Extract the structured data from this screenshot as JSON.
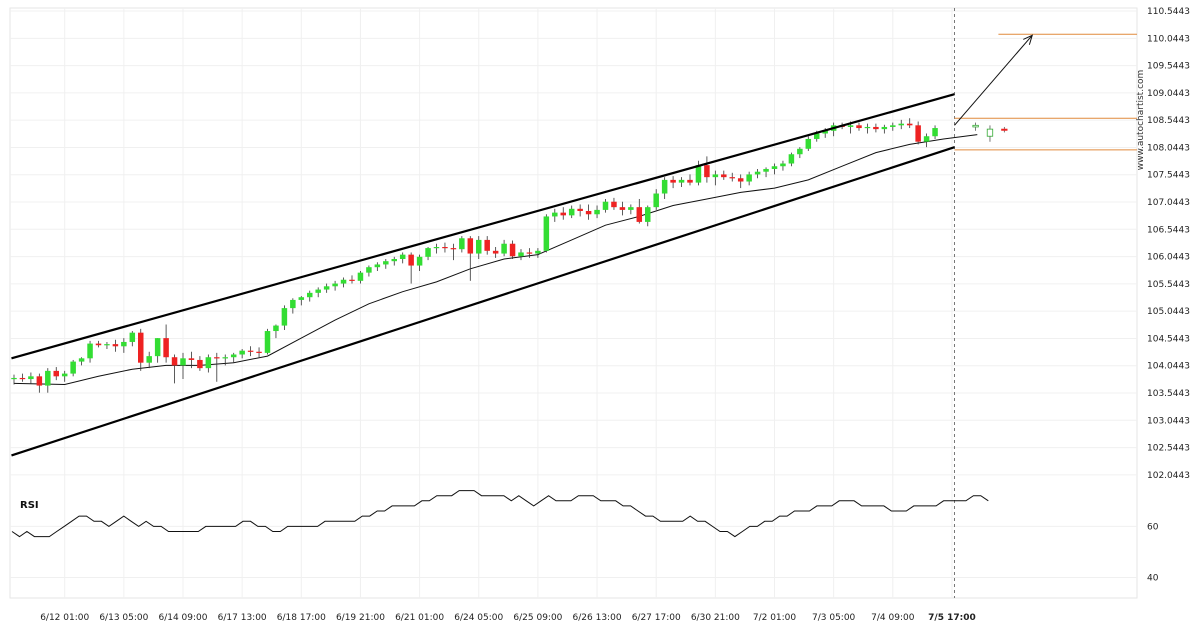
{
  "chart_data": [
    {
      "type": "candlestick",
      "title": "",
      "watermark": "www.autochartist.com",
      "y_ticks": [
        "110.5443",
        "110.0443",
        "109.5443",
        "109.0443",
        "108.5443",
        "108.0443",
        "107.5443",
        "107.0443",
        "106.5443",
        "106.0443",
        "105.5443",
        "105.0443",
        "104.5443",
        "104.0443",
        "103.5443",
        "103.0443",
        "102.5443",
        "102.0443"
      ],
      "ylim": [
        101.95,
        110.6
      ],
      "x_ticks": [
        {
          "label": "6/12 01:00",
          "index": 6
        },
        {
          "label": "6/13 05:00",
          "index": 13
        },
        {
          "label": "6/14 09:00",
          "index": 20
        },
        {
          "label": "6/17 13:00",
          "index": 27
        },
        {
          "label": "6/18 17:00",
          "index": 34
        },
        {
          "label": "6/19 21:00",
          "index": 41
        },
        {
          "label": "6/21 01:00",
          "index": 48
        },
        {
          "label": "6/24 05:00",
          "index": 55
        },
        {
          "label": "6/25 09:00",
          "index": 62
        },
        {
          "label": "6/26 13:00",
          "index": 69
        },
        {
          "label": "6/27 17:00",
          "index": 76
        },
        {
          "label": "6/30 21:00",
          "index": 83
        },
        {
          "label": "7/2 01:00",
          "index": 90
        },
        {
          "label": "7/3 05:00",
          "index": 97
        },
        {
          "label": "7/4 09:00",
          "index": 104
        },
        {
          "label": "7/5 17:00",
          "index": 111,
          "highlight": true
        }
      ],
      "candles": [
        {
          "o": 103.8,
          "h": 103.88,
          "l": 103.7,
          "c": 103.82
        },
        {
          "o": 103.82,
          "h": 103.9,
          "l": 103.75,
          "c": 103.8
        },
        {
          "o": 103.8,
          "h": 103.92,
          "l": 103.72,
          "c": 103.85
        },
        {
          "o": 103.85,
          "h": 103.9,
          "l": 103.55,
          "c": 103.68
        },
        {
          "o": 103.68,
          "h": 104.0,
          "l": 103.55,
          "c": 103.95
        },
        {
          "o": 103.95,
          "h": 104.02,
          "l": 103.78,
          "c": 103.85
        },
        {
          "o": 103.85,
          "h": 103.95,
          "l": 103.75,
          "c": 103.9
        },
        {
          "o": 103.9,
          "h": 104.15,
          "l": 103.85,
          "c": 104.12
        },
        {
          "o": 104.12,
          "h": 104.2,
          "l": 104.05,
          "c": 104.18
        },
        {
          "o": 104.18,
          "h": 104.5,
          "l": 104.1,
          "c": 104.45
        },
        {
          "o": 104.45,
          "h": 104.5,
          "l": 104.38,
          "c": 104.42
        },
        {
          "o": 104.42,
          "h": 104.48,
          "l": 104.35,
          "c": 104.44
        },
        {
          "o": 104.44,
          "h": 104.52,
          "l": 104.3,
          "c": 104.4
        },
        {
          "o": 104.4,
          "h": 104.55,
          "l": 104.28,
          "c": 104.48
        },
        {
          "o": 104.48,
          "h": 104.68,
          "l": 104.4,
          "c": 104.65
        },
        {
          "o": 104.65,
          "h": 104.72,
          "l": 103.95,
          "c": 104.1
        },
        {
          "o": 104.1,
          "h": 104.3,
          "l": 104.0,
          "c": 104.22
        },
        {
          "o": 104.22,
          "h": 104.55,
          "l": 104.1,
          "c": 104.55
        },
        {
          "o": 104.55,
          "h": 104.8,
          "l": 104.1,
          "c": 104.2
        },
        {
          "o": 104.2,
          "h": 104.25,
          "l": 103.72,
          "c": 104.05
        },
        {
          "o": 104.05,
          "h": 104.28,
          "l": 103.8,
          "c": 104.18
        },
        {
          "o": 104.18,
          "h": 104.3,
          "l": 104.0,
          "c": 104.15
        },
        {
          "o": 104.15,
          "h": 104.22,
          "l": 103.95,
          "c": 104.0
        },
        {
          "o": 104.0,
          "h": 104.25,
          "l": 103.92,
          "c": 104.2
        },
        {
          "o": 104.2,
          "h": 104.28,
          "l": 103.75,
          "c": 104.18
        },
        {
          "o": 104.18,
          "h": 104.25,
          "l": 104.05,
          "c": 104.2
        },
        {
          "o": 104.2,
          "h": 104.28,
          "l": 104.1,
          "c": 104.25
        },
        {
          "o": 104.25,
          "h": 104.35,
          "l": 104.18,
          "c": 104.32
        },
        {
          "o": 104.32,
          "h": 104.4,
          "l": 104.22,
          "c": 104.3
        },
        {
          "o": 104.3,
          "h": 104.38,
          "l": 104.2,
          "c": 104.28
        },
        {
          "o": 104.28,
          "h": 104.72,
          "l": 104.25,
          "c": 104.68
        },
        {
          "o": 104.68,
          "h": 104.8,
          "l": 104.55,
          "c": 104.78
        },
        {
          "o": 104.78,
          "h": 105.15,
          "l": 104.7,
          "c": 105.1
        },
        {
          "o": 105.1,
          "h": 105.28,
          "l": 105.0,
          "c": 105.25
        },
        {
          "o": 105.25,
          "h": 105.32,
          "l": 105.15,
          "c": 105.3
        },
        {
          "o": 105.3,
          "h": 105.42,
          "l": 105.22,
          "c": 105.38
        },
        {
          "o": 105.38,
          "h": 105.48,
          "l": 105.3,
          "c": 105.44
        },
        {
          "o": 105.44,
          "h": 105.55,
          "l": 105.38,
          "c": 105.5
        },
        {
          "o": 105.5,
          "h": 105.6,
          "l": 105.42,
          "c": 105.55
        },
        {
          "o": 105.55,
          "h": 105.66,
          "l": 105.48,
          "c": 105.62
        },
        {
          "o": 105.62,
          "h": 105.7,
          "l": 105.55,
          "c": 105.6
        },
        {
          "o": 105.6,
          "h": 105.78,
          "l": 105.55,
          "c": 105.75
        },
        {
          "o": 105.75,
          "h": 105.88,
          "l": 105.68,
          "c": 105.85
        },
        {
          "o": 105.85,
          "h": 105.94,
          "l": 105.78,
          "c": 105.9
        },
        {
          "o": 105.9,
          "h": 106.0,
          "l": 105.82,
          "c": 105.96
        },
        {
          "o": 105.96,
          "h": 106.04,
          "l": 105.88,
          "c": 106.0
        },
        {
          "o": 106.0,
          "h": 106.12,
          "l": 105.92,
          "c": 106.08
        },
        {
          "o": 106.08,
          "h": 106.12,
          "l": 105.55,
          "c": 105.88
        },
        {
          "o": 105.88,
          "h": 106.08,
          "l": 105.78,
          "c": 106.04
        },
        {
          "o": 106.04,
          "h": 106.22,
          "l": 105.98,
          "c": 106.2
        },
        {
          "o": 106.2,
          "h": 106.28,
          "l": 106.1,
          "c": 106.22
        },
        {
          "o": 106.22,
          "h": 106.3,
          "l": 106.12,
          "c": 106.2
        },
        {
          "o": 106.2,
          "h": 106.28,
          "l": 105.98,
          "c": 106.18
        },
        {
          "o": 106.18,
          "h": 106.42,
          "l": 106.12,
          "c": 106.38
        },
        {
          "o": 106.38,
          "h": 106.42,
          "l": 105.6,
          "c": 106.1
        },
        {
          "o": 106.1,
          "h": 106.42,
          "l": 106.0,
          "c": 106.35
        },
        {
          "o": 106.35,
          "h": 106.42,
          "l": 106.08,
          "c": 106.15
        },
        {
          "o": 106.15,
          "h": 106.22,
          "l": 106.02,
          "c": 106.1
        },
        {
          "o": 106.1,
          "h": 106.35,
          "l": 106.05,
          "c": 106.28
        },
        {
          "o": 106.28,
          "h": 106.34,
          "l": 106.0,
          "c": 106.05
        },
        {
          "o": 106.05,
          "h": 106.18,
          "l": 105.98,
          "c": 106.12
        },
        {
          "o": 106.12,
          "h": 106.2,
          "l": 106.02,
          "c": 106.1
        },
        {
          "o": 106.1,
          "h": 106.2,
          "l": 106.02,
          "c": 106.15
        },
        {
          "o": 106.15,
          "h": 106.82,
          "l": 106.12,
          "c": 106.78
        },
        {
          "o": 106.78,
          "h": 106.92,
          "l": 106.68,
          "c": 106.85
        },
        {
          "o": 106.85,
          "h": 106.95,
          "l": 106.72,
          "c": 106.8
        },
        {
          "o": 106.8,
          "h": 106.98,
          "l": 106.75,
          "c": 106.92
        },
        {
          "o": 106.92,
          "h": 107.0,
          "l": 106.78,
          "c": 106.88
        },
        {
          "o": 106.88,
          "h": 107.0,
          "l": 106.72,
          "c": 106.82
        },
        {
          "o": 106.82,
          "h": 106.98,
          "l": 106.75,
          "c": 106.9
        },
        {
          "o": 106.9,
          "h": 107.1,
          "l": 106.85,
          "c": 107.05
        },
        {
          "o": 107.05,
          "h": 107.12,
          "l": 106.9,
          "c": 106.95
        },
        {
          "o": 106.95,
          "h": 107.05,
          "l": 106.8,
          "c": 106.9
        },
        {
          "o": 106.9,
          "h": 107.0,
          "l": 106.82,
          "c": 106.95
        },
        {
          "o": 106.95,
          "h": 107.1,
          "l": 106.65,
          "c": 106.68
        },
        {
          "o": 106.68,
          "h": 106.98,
          "l": 106.6,
          "c": 106.95
        },
        {
          "o": 106.95,
          "h": 107.28,
          "l": 106.9,
          "c": 107.2
        },
        {
          "o": 107.2,
          "h": 107.5,
          "l": 107.1,
          "c": 107.45
        },
        {
          "o": 107.45,
          "h": 107.52,
          "l": 107.3,
          "c": 107.4
        },
        {
          "o": 107.4,
          "h": 107.5,
          "l": 107.32,
          "c": 107.45
        },
        {
          "o": 107.45,
          "h": 107.55,
          "l": 107.35,
          "c": 107.4
        },
        {
          "o": 107.4,
          "h": 107.8,
          "l": 107.35,
          "c": 107.72
        },
        {
          "o": 107.72,
          "h": 107.88,
          "l": 107.4,
          "c": 107.5
        },
        {
          "o": 107.5,
          "h": 107.62,
          "l": 107.35,
          "c": 107.55
        },
        {
          "o": 107.55,
          "h": 107.62,
          "l": 107.45,
          "c": 107.5
        },
        {
          "o": 107.5,
          "h": 107.58,
          "l": 107.42,
          "c": 107.48
        },
        {
          "o": 107.48,
          "h": 107.55,
          "l": 107.3,
          "c": 107.42
        },
        {
          "o": 107.42,
          "h": 107.6,
          "l": 107.35,
          "c": 107.55
        },
        {
          "o": 107.55,
          "h": 107.65,
          "l": 107.48,
          "c": 107.6
        },
        {
          "o": 107.6,
          "h": 107.68,
          "l": 107.5,
          "c": 107.65
        },
        {
          "o": 107.65,
          "h": 107.75,
          "l": 107.55,
          "c": 107.7
        },
        {
          "o": 107.7,
          "h": 107.8,
          "l": 107.62,
          "c": 107.75
        },
        {
          "o": 107.75,
          "h": 107.95,
          "l": 107.7,
          "c": 107.92
        },
        {
          "o": 107.92,
          "h": 108.05,
          "l": 107.85,
          "c": 108.02
        },
        {
          "o": 108.02,
          "h": 108.25,
          "l": 107.98,
          "c": 108.2
        },
        {
          "o": 108.2,
          "h": 108.35,
          "l": 108.15,
          "c": 108.3
        },
        {
          "o": 108.3,
          "h": 108.4,
          "l": 108.22,
          "c": 108.35
        },
        {
          "o": 108.35,
          "h": 108.5,
          "l": 108.25,
          "c": 108.45
        },
        {
          "o": 108.45,
          "h": 108.5,
          "l": 108.38,
          "c": 108.42
        },
        {
          "o": 108.42,
          "h": 108.52,
          "l": 108.3,
          "c": 108.45
        },
        {
          "o": 108.45,
          "h": 108.5,
          "l": 108.35,
          "c": 108.4
        },
        {
          "o": 108.4,
          "h": 108.48,
          "l": 108.3,
          "c": 108.42
        },
        {
          "o": 108.42,
          "h": 108.48,
          "l": 108.32,
          "c": 108.38
        },
        {
          "o": 108.38,
          "h": 108.46,
          "l": 108.3,
          "c": 108.42
        },
        {
          "o": 108.42,
          "h": 108.5,
          "l": 108.35,
          "c": 108.45
        },
        {
          "o": 108.45,
          "h": 108.55,
          "l": 108.38,
          "c": 108.48
        },
        {
          "o": 108.48,
          "h": 108.58,
          "l": 108.4,
          "c": 108.45
        },
        {
          "o": 108.45,
          "h": 108.52,
          "l": 108.1,
          "c": 108.15
        },
        {
          "o": 108.15,
          "h": 108.3,
          "l": 108.05,
          "c": 108.25
        },
        {
          "o": 108.25,
          "h": 108.45,
          "l": 108.2,
          "c": 108.4
        }
      ],
      "projected_candles": [
        {
          "o": 108.42,
          "h": 108.5,
          "l": 108.35,
          "c": 108.45
        },
        {
          "o": 108.25,
          "h": 108.45,
          "l": 108.15,
          "c": 108.38
        },
        {
          "o": 108.38,
          "h": 108.42,
          "l": 108.32,
          "c": 108.36
        }
      ],
      "moving_average": [
        {
          "i": 0,
          "v": 103.72
        },
        {
          "i": 6,
          "v": 103.7
        },
        {
          "i": 10,
          "v": 103.85
        },
        {
          "i": 14,
          "v": 103.98
        },
        {
          "i": 18,
          "v": 104.05
        },
        {
          "i": 22,
          "v": 104.05
        },
        {
          "i": 26,
          "v": 104.1
        },
        {
          "i": 30,
          "v": 104.22
        },
        {
          "i": 34,
          "v": 104.55
        },
        {
          "i": 38,
          "v": 104.88
        },
        {
          "i": 42,
          "v": 105.18
        },
        {
          "i": 46,
          "v": 105.4
        },
        {
          "i": 50,
          "v": 105.58
        },
        {
          "i": 54,
          "v": 105.82
        },
        {
          "i": 58,
          "v": 106.0
        },
        {
          "i": 62,
          "v": 106.08
        },
        {
          "i": 66,
          "v": 106.35
        },
        {
          "i": 70,
          "v": 106.62
        },
        {
          "i": 74,
          "v": 106.78
        },
        {
          "i": 78,
          "v": 106.98
        },
        {
          "i": 82,
          "v": 107.1
        },
        {
          "i": 86,
          "v": 107.22
        },
        {
          "i": 90,
          "v": 107.3
        },
        {
          "i": 94,
          "v": 107.45
        },
        {
          "i": 98,
          "v": 107.7
        },
        {
          "i": 102,
          "v": 107.95
        },
        {
          "i": 106,
          "v": 108.1
        },
        {
          "i": 110,
          "v": 108.2
        },
        {
          "i": 114,
          "v": 108.28
        }
      ],
      "channel_upper": {
        "x1": -0.3,
        "y1": 104.18,
        "x2": 111.3,
        "y2": 109.02
      },
      "channel_lower": {
        "x1": -0.3,
        "y1": 102.4,
        "x2": 111.3,
        "y2": 108.05
      },
      "target_arrow": {
        "x1": 111.3,
        "y1": 108.45,
        "x2": 120.5,
        "y2": 110.1
      },
      "horizontal_levels": [
        {
          "value": 110.12,
          "from_index": 116.5
        },
        {
          "value": 108.58,
          "from_index": 111.3
        },
        {
          "value": 108.0,
          "from_index": 111.3
        }
      ],
      "current_index": 111.3,
      "colors": {
        "bull": "#33dd33",
        "bear": "#ee2222",
        "level": "#e08a3c",
        "channel": "#000000",
        "grid": "#f0f0f0"
      }
    },
    {
      "type": "line",
      "title": "RSI",
      "y_ticks": [
        "60",
        "40"
      ],
      "ylim": [
        32,
        75
      ],
      "values": [
        58,
        56,
        58,
        56,
        56,
        56,
        58,
        60,
        62,
        64,
        64,
        62,
        62,
        60,
        62,
        64,
        62,
        60,
        62,
        60,
        60,
        58,
        58,
        58,
        58,
        58,
        60,
        60,
        60,
        60,
        60,
        62,
        62,
        60,
        60,
        58,
        58,
        60,
        60,
        60,
        60,
        60,
        62,
        62,
        62,
        62,
        62,
        64,
        64,
        66,
        66,
        68,
        68,
        68,
        68,
        70,
        70,
        72,
        72,
        72,
        74,
        74,
        74,
        72,
        72,
        72,
        72,
        70,
        72,
        70,
        68,
        70,
        72,
        70,
        70,
        70,
        72,
        72,
        72,
        70,
        70,
        70,
        68,
        68,
        66,
        64,
        64,
        62,
        62,
        62,
        62,
        64,
        62,
        62,
        60,
        58,
        58,
        56,
        58,
        60,
        60,
        62,
        62,
        64,
        64,
        66,
        66,
        66,
        68,
        68,
        68,
        70,
        70,
        70,
        68,
        68,
        68,
        68,
        66,
        66,
        66,
        68,
        68,
        68,
        68,
        70,
        70,
        70,
        70,
        72,
        72,
        70
      ]
    }
  ]
}
